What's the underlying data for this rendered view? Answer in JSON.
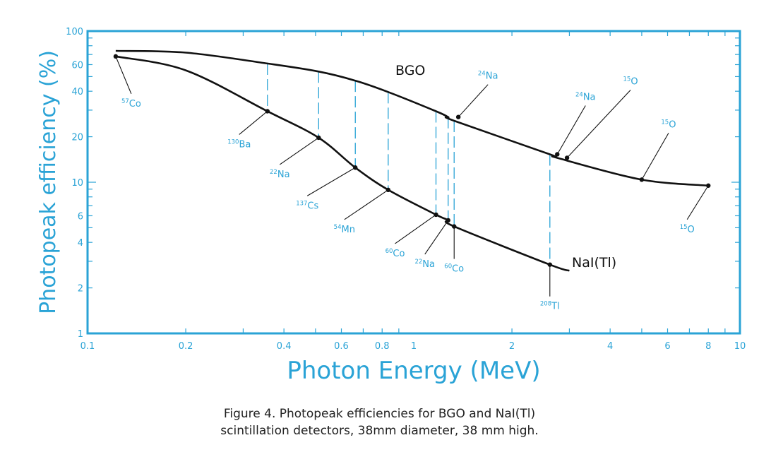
{
  "caption": {
    "line1": "Figure 4. Photopeak efficiencies for BGO and NaI(Tl)",
    "line2": "scintillation detectors, 38mm diameter, 38 mm high."
  },
  "chart_data": {
    "type": "line",
    "title": "",
    "xlabel": "Photon Energy (MeV)",
    "ylabel": "Photopeak efficiency (%)",
    "x_scale": "log",
    "y_scale": "log",
    "xlim": [
      0.1,
      10
    ],
    "ylim": [
      1,
      100
    ],
    "x_tick_labels": [
      "0.1",
      "0.2",
      "0.4",
      "0.6",
      "0.8",
      "1",
      "2",
      "4",
      "6",
      "8",
      "10"
    ],
    "y_tick_labels": [
      "1",
      "2",
      "4",
      "6",
      "10",
      "20",
      "40",
      "60",
      "100"
    ],
    "grid": false,
    "colors": {
      "axis": "#2aa3d6",
      "curve": "#111111",
      "annotation": "#2aa3d6"
    },
    "series": [
      {
        "name": "BGO",
        "x": [
          0.122,
          0.2,
          0.356,
          0.511,
          0.662,
          0.835,
          1.17,
          1.275,
          1.33,
          2.614,
          2.754,
          5.0,
          8.0
        ],
        "y": [
          74,
          72,
          61,
          54,
          47,
          39.5,
          29.5,
          27,
          25.5,
          15.3,
          14.5,
          10.4,
          9.5
        ],
        "points": [
          {
            "x": 1.37,
            "y": 27,
            "label_pre": "24",
            "label": "Na"
          },
          {
            "x": 2.754,
            "y": 15.3,
            "label_pre": "24",
            "label": "Na"
          },
          {
            "x": 2.95,
            "y": 14.5,
            "label_pre": "15",
            "label": "O"
          },
          {
            "x": 5.0,
            "y": 10.4,
            "label_pre": "15",
            "label": "O"
          },
          {
            "x": 8.0,
            "y": 9.5,
            "label_pre": "15",
            "label": "O"
          }
        ]
      },
      {
        "name": "NaI(Tl)",
        "x": [
          0.122,
          0.2,
          0.356,
          0.511,
          0.662,
          0.835,
          1.17,
          1.275,
          1.33,
          2.614,
          3.0
        ],
        "y": [
          68,
          55,
          29.5,
          19.7,
          12.5,
          8.9,
          6.1,
          5.6,
          5.1,
          2.85,
          2.6
        ],
        "points": [
          {
            "x": 0.122,
            "y": 68,
            "label_pre": "57",
            "label": "Co"
          },
          {
            "x": 0.356,
            "y": 29.5,
            "label_pre": "130",
            "label": "Ba"
          },
          {
            "x": 0.511,
            "y": 19.7,
            "label_pre": "22",
            "label": "Na"
          },
          {
            "x": 0.662,
            "y": 12.5,
            "label_pre": "137",
            "label": "Cs"
          },
          {
            "x": 0.835,
            "y": 8.9,
            "label_pre": "54",
            "label": "Mn"
          },
          {
            "x": 1.17,
            "y": 6.1,
            "label_pre": "60",
            "label": "Co"
          },
          {
            "x": 1.275,
            "y": 5.6,
            "label_pre": "22",
            "label": "Na"
          },
          {
            "x": 1.33,
            "y": 5.1,
            "label_pre": "60",
            "label": "Co"
          },
          {
            "x": 2.614,
            "y": 2.85,
            "label_pre": "208",
            "label": "Tl"
          }
        ]
      }
    ]
  }
}
